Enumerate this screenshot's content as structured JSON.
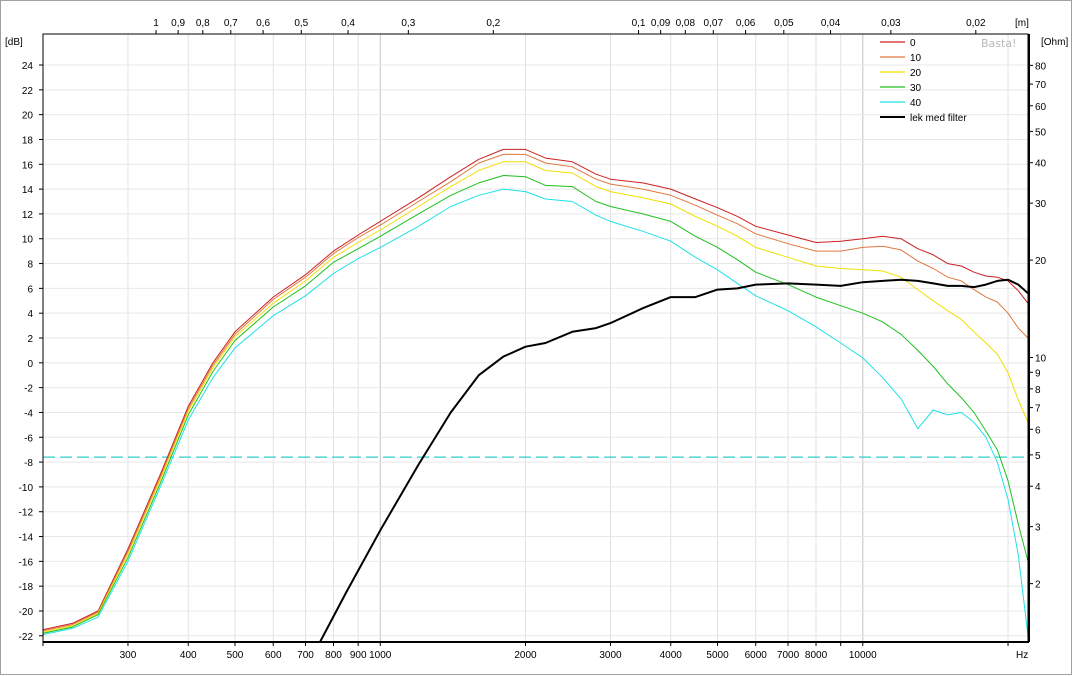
{
  "chart_data": {
    "type": "line",
    "x_scale": "log",
    "xlim": [
      200,
      22000
    ],
    "ylim": [
      -22.5,
      26.5
    ],
    "y_right_scale": "log",
    "y_right_lim": [
      1.32,
      100
    ],
    "grid": true,
    "legend_placement": "top-right",
    "units": {
      "left": "[dB]",
      "right": "[Ohm]",
      "top": "[m]",
      "bottom": "Hz"
    },
    "watermark": "Basta!",
    "x_ticks": [
      {
        "v": 300,
        "t": "300"
      },
      {
        "v": 400,
        "t": "400"
      },
      {
        "v": 500,
        "t": "500"
      },
      {
        "v": 600,
        "t": "600"
      },
      {
        "v": 700,
        "t": "700"
      },
      {
        "v": 800,
        "t": "800"
      },
      {
        "v": 900,
        "t": "900"
      },
      {
        "v": 1000,
        "t": "1000"
      },
      {
        "v": 2000,
        "t": "2000"
      },
      {
        "v": 3000,
        "t": "3000"
      },
      {
        "v": 4000,
        "t": "4000"
      },
      {
        "v": 5000,
        "t": "5000"
      },
      {
        "v": 6000,
        "t": "6000"
      },
      {
        "v": 7000,
        "t": "7000"
      },
      {
        "v": 8000,
        "t": "8000"
      },
      {
        "v": 10000,
        "t": "10000"
      }
    ],
    "x_major_lines": [
      1000,
      10000
    ],
    "x_minor_lines": [
      300,
      400,
      500,
      600,
      700,
      800,
      900,
      2000,
      3000,
      4000,
      5000,
      6000,
      7000,
      8000,
      9000,
      20000
    ],
    "y_ticks": [
      24,
      22,
      20,
      18,
      16,
      14,
      12,
      10,
      8,
      6,
      4,
      2,
      0,
      -2,
      -4,
      -6,
      -8,
      -10,
      -12,
      -14,
      -16,
      -18,
      -20,
      -22
    ],
    "y_tick_labels": [
      "24",
      "22",
      "20",
      "18",
      "16",
      "14",
      "12",
      "10",
      "8",
      "6",
      "4",
      "2",
      "0",
      "-2",
      "-4",
      "-6",
      "-8",
      "-10",
      "-12",
      "-14",
      "-16",
      "-18",
      "-20",
      "-22"
    ],
    "y_right_ticks": [
      {
        "v": 80,
        "t": "80"
      },
      {
        "v": 70,
        "t": "70"
      },
      {
        "v": 60,
        "t": "60"
      },
      {
        "v": 50,
        "t": "50"
      },
      {
        "v": 40,
        "t": "40"
      },
      {
        "v": 30,
        "t": "30"
      },
      {
        "v": 20,
        "t": "20"
      },
      {
        "v": 10,
        "t": "10"
      },
      {
        "v": 9,
        "t": "9"
      },
      {
        "v": 8,
        "t": "8"
      },
      {
        "v": 7,
        "t": "7"
      },
      {
        "v": 6,
        "t": "6"
      },
      {
        "v": 5,
        "t": "5"
      },
      {
        "v": 4,
        "t": "4"
      },
      {
        "v": 3,
        "t": "3"
      },
      {
        "v": 2,
        "t": "2"
      }
    ],
    "top_ticks": [
      {
        "v": 1,
        "t": "1"
      },
      {
        "v": 0.9,
        "t": "0,9"
      },
      {
        "v": 0.8,
        "t": "0,8"
      },
      {
        "v": 0.7,
        "t": "0,7"
      },
      {
        "v": 0.6,
        "t": "0,6"
      },
      {
        "v": 0.5,
        "t": "0,5"
      },
      {
        "v": 0.4,
        "t": "0,4"
      },
      {
        "v": 0.3,
        "t": "0,3"
      },
      {
        "v": 0.2,
        "t": "0,2"
      },
      {
        "v": 0.1,
        "t": "0,1"
      },
      {
        "v": 0.09,
        "t": "0,09"
      },
      {
        "v": 0.08,
        "t": "0,08"
      },
      {
        "v": 0.07,
        "t": "0,07"
      },
      {
        "v": 0.06,
        "t": "0,06"
      },
      {
        "v": 0.05,
        "t": "0,05"
      },
      {
        "v": 0.04,
        "t": "0,04"
      },
      {
        "v": 0.03,
        "t": "0,03"
      },
      {
        "v": 0.02,
        "t": "0,02"
      }
    ],
    "reference_line": {
      "y": -7.6,
      "color": "#33cccc"
    },
    "series": [
      {
        "name": "0",
        "color": "#cc2020",
        "x": [
          200,
          230,
          260,
          300,
          350,
          400,
          450,
          500,
          600,
          700,
          800,
          900,
          1000,
          1200,
          1400,
          1600,
          1800,
          2000,
          2200,
          2500,
          2800,
          3000,
          3500,
          4000,
          4500,
          5000,
          5500,
          6000,
          7000,
          8000,
          9000,
          10000,
          11000,
          12000,
          13000,
          14000,
          15000,
          16000,
          17000,
          18000,
          19000,
          20000,
          21000,
          22000
        ],
        "y": [
          -21.5,
          -21.0,
          -20.0,
          -15.0,
          -9.0,
          -3.5,
          0.0,
          2.5,
          5.3,
          7.1,
          9.0,
          10.3,
          11.4,
          13.3,
          15.0,
          16.4,
          17.2,
          17.2,
          16.5,
          16.2,
          15.2,
          14.8,
          14.5,
          14.0,
          13.2,
          12.5,
          11.8,
          11.0,
          10.3,
          9.7,
          9.8,
          10.0,
          10.2,
          10.0,
          9.2,
          8.7,
          8.0,
          7.8,
          7.3,
          7.0,
          6.9,
          6.6,
          5.8,
          4.8
        ]
      },
      {
        "name": "10",
        "color": "#e07840",
        "x": [
          200,
          230,
          260,
          300,
          350,
          400,
          450,
          500,
          600,
          700,
          800,
          900,
          1000,
          1200,
          1400,
          1600,
          1800,
          2000,
          2200,
          2500,
          2800,
          3000,
          3500,
          4000,
          4500,
          5000,
          5500,
          6000,
          7000,
          8000,
          9000,
          10000,
          11000,
          12000,
          13000,
          14000,
          15000,
          16000,
          17000,
          18000,
          19000,
          20000,
          21000,
          22000
        ],
        "y": [
          -21.6,
          -21.1,
          -20.1,
          -15.2,
          -9.2,
          -3.7,
          -0.2,
          2.3,
          5.1,
          6.9,
          8.8,
          10.1,
          11.1,
          13.0,
          14.6,
          16.1,
          16.8,
          16.8,
          16.1,
          15.8,
          14.8,
          14.4,
          14.0,
          13.5,
          12.7,
          11.9,
          11.2,
          10.4,
          9.6,
          9.0,
          9.0,
          9.3,
          9.4,
          9.1,
          8.2,
          7.6,
          6.9,
          6.6,
          5.9,
          5.3,
          4.9,
          4.0,
          2.8,
          2.0
        ]
      },
      {
        "name": "20",
        "color": "#f0e000",
        "x": [
          200,
          230,
          260,
          300,
          350,
          400,
          450,
          500,
          600,
          700,
          800,
          900,
          1000,
          1200,
          1400,
          1600,
          1800,
          2000,
          2200,
          2500,
          2800,
          3000,
          3500,
          4000,
          4500,
          5000,
          5500,
          6000,
          7000,
          8000,
          9000,
          10000,
          11000,
          12000,
          13000,
          14000,
          15000,
          16000,
          17000,
          18000,
          19000,
          20000,
          21000,
          22000
        ],
        "y": [
          -21.7,
          -21.2,
          -20.2,
          -15.4,
          -9.4,
          -3.9,
          -0.4,
          2.1,
          4.8,
          6.6,
          8.5,
          9.7,
          10.7,
          12.6,
          14.2,
          15.5,
          16.2,
          16.2,
          15.5,
          15.3,
          14.2,
          13.8,
          13.3,
          12.8,
          11.8,
          11.0,
          10.2,
          9.3,
          8.5,
          7.8,
          7.6,
          7.5,
          7.4,
          6.9,
          5.9,
          5.0,
          4.2,
          3.5,
          2.5,
          1.6,
          0.7,
          -0.8,
          -3.0,
          -4.8
        ]
      },
      {
        "name": "30",
        "color": "#20c020",
        "x": [
          200,
          230,
          260,
          300,
          350,
          400,
          450,
          500,
          600,
          700,
          800,
          900,
          1000,
          1200,
          1400,
          1600,
          1800,
          2000,
          2200,
          2500,
          2800,
          3000,
          3500,
          4000,
          4500,
          5000,
          5500,
          6000,
          7000,
          8000,
          9000,
          10000,
          11000,
          12000,
          13000,
          14000,
          15000,
          16000,
          17000,
          18000,
          19000,
          20000,
          21000,
          22000
        ],
        "y": [
          -21.8,
          -21.3,
          -20.3,
          -15.7,
          -9.7,
          -4.2,
          -0.7,
          1.8,
          4.5,
          6.2,
          8.1,
          9.2,
          10.2,
          12.0,
          13.5,
          14.5,
          15.1,
          15.0,
          14.3,
          14.2,
          13.0,
          12.6,
          12.0,
          11.4,
          10.2,
          9.3,
          8.3,
          7.3,
          6.3,
          5.3,
          4.6,
          4.0,
          3.3,
          2.3,
          1.0,
          -0.3,
          -1.7,
          -2.8,
          -4.0,
          -5.5,
          -7.0,
          -9.5,
          -13.0,
          -16.0
        ]
      },
      {
        "name": "40",
        "color": "#20e0e8",
        "x": [
          200,
          230,
          260,
          300,
          350,
          400,
          450,
          500,
          600,
          700,
          800,
          900,
          1000,
          1200,
          1400,
          1600,
          1800,
          2000,
          2200,
          2500,
          2800,
          3000,
          3500,
          4000,
          4500,
          5000,
          5500,
          6000,
          7000,
          8000,
          9000,
          10000,
          11000,
          12000,
          13000,
          14000,
          15000,
          16000,
          17000,
          18000,
          19000,
          20000,
          21000,
          22000
        ],
        "y": [
          -21.9,
          -21.4,
          -20.5,
          -16.0,
          -10.0,
          -4.6,
          -1.2,
          1.2,
          3.8,
          5.4,
          7.2,
          8.4,
          9.3,
          11.0,
          12.6,
          13.5,
          14.0,
          13.8,
          13.2,
          13.0,
          11.9,
          11.4,
          10.6,
          9.8,
          8.5,
          7.5,
          6.4,
          5.4,
          4.2,
          2.9,
          1.6,
          0.4,
          -1.2,
          -2.9,
          -5.3,
          -3.8,
          -4.2,
          -4.0,
          -4.8,
          -6.0,
          -8.0,
          -11.0,
          -15.5,
          -22.0
        ]
      },
      {
        "name": "lek med filter",
        "color": "#000000",
        "x": [
          750,
          850,
          1000,
          1200,
          1400,
          1600,
          1800,
          2000,
          2200,
          2500,
          2800,
          3000,
          3500,
          4000,
          4500,
          5000,
          5500,
          6000,
          7000,
          8000,
          9000,
          10000,
          11000,
          12000,
          13000,
          14000,
          15000,
          16000,
          17000,
          18000,
          19000,
          20000,
          21000,
          22000
        ],
        "y": [
          -22.5,
          -18.5,
          -13.5,
          -8.2,
          -4.0,
          -1.0,
          0.5,
          1.3,
          1.6,
          2.5,
          2.8,
          3.2,
          4.4,
          5.3,
          5.3,
          5.9,
          6.0,
          6.3,
          6.4,
          6.3,
          6.2,
          6.5,
          6.6,
          6.7,
          6.6,
          6.4,
          6.2,
          6.2,
          6.1,
          6.3,
          6.6,
          6.7,
          6.3,
          5.6
        ]
      }
    ]
  }
}
